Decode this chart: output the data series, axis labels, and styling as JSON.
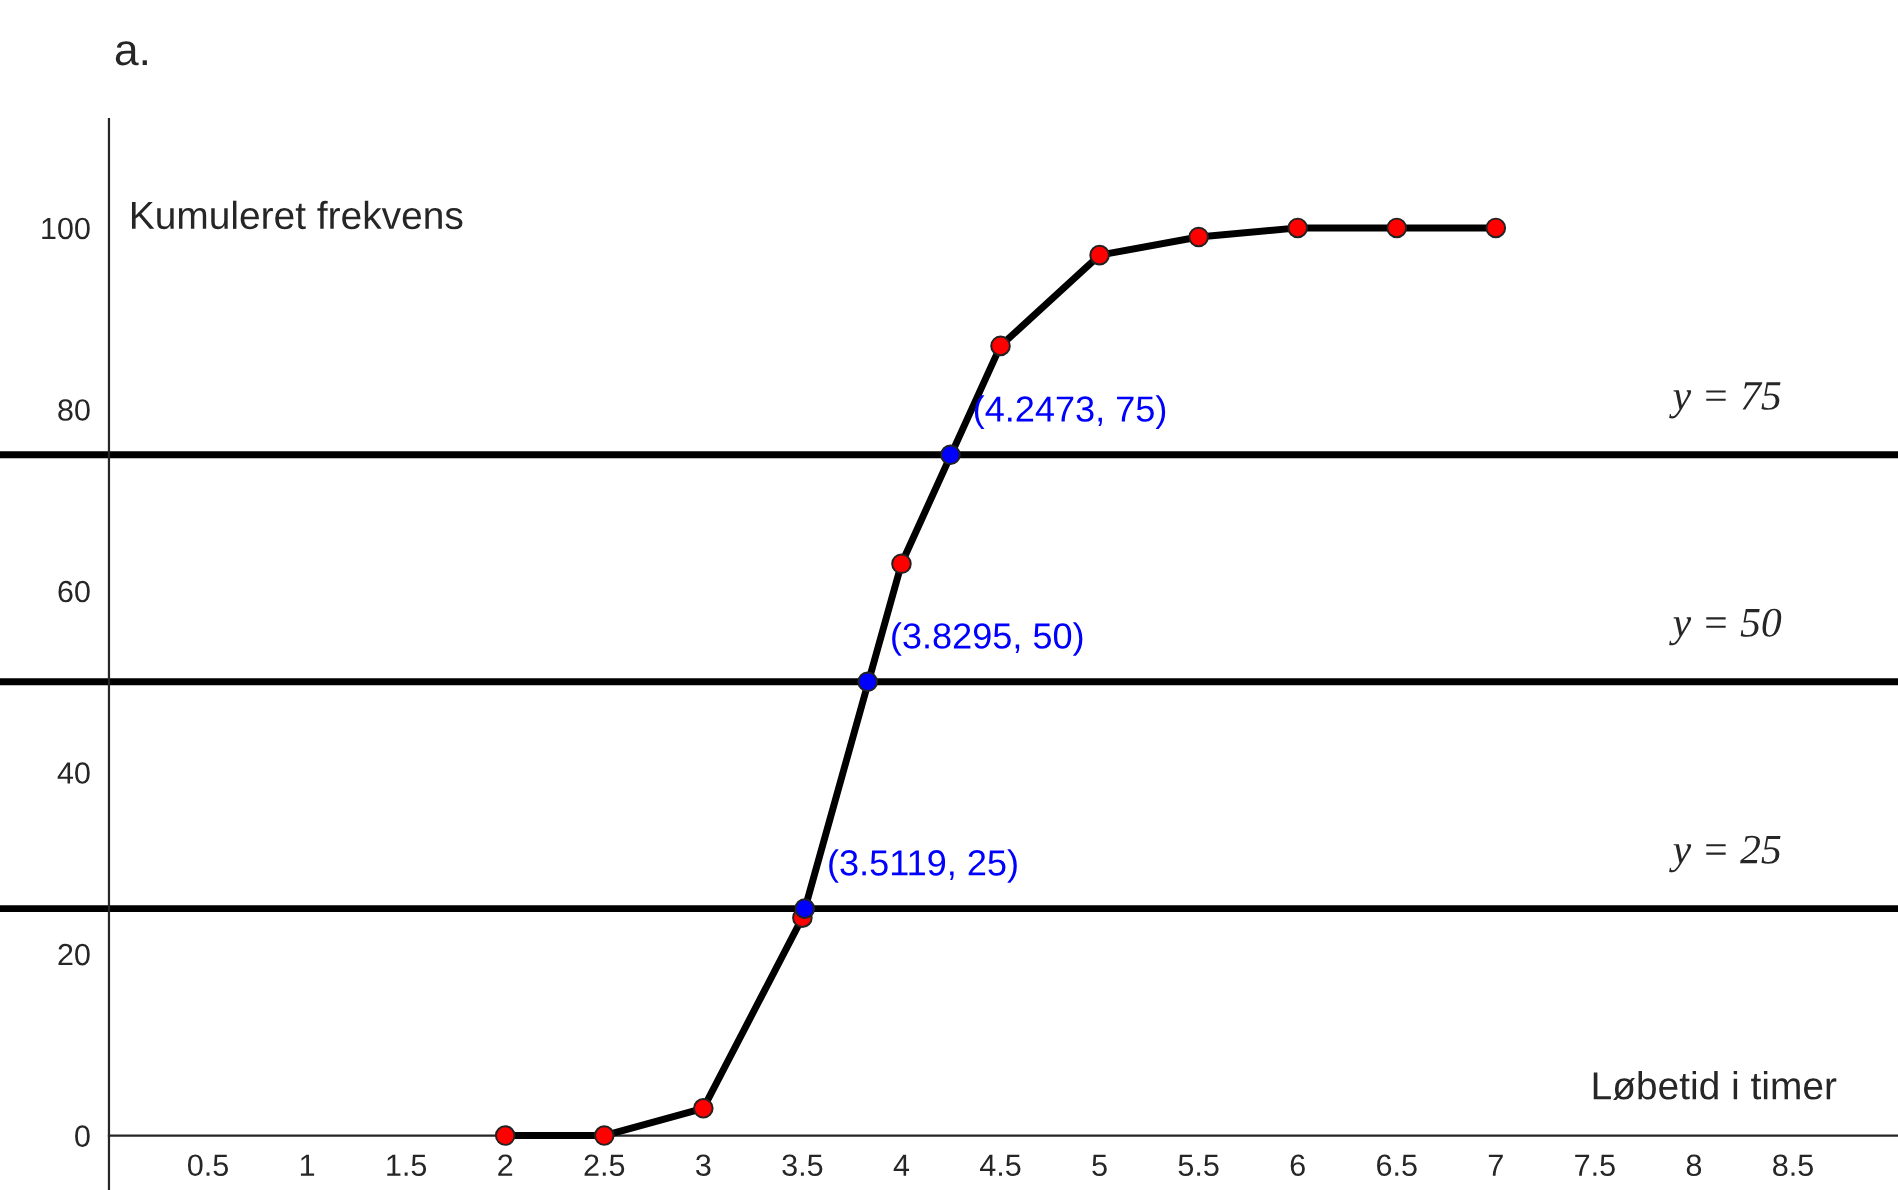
{
  "chart_data": {
    "type": "line",
    "title": "a.",
    "xlabel": "Løbetid i timer",
    "ylabel": "Kumuleret frekvens",
    "xlim": [
      -0.55,
      9.03
    ],
    "ylim": [
      -6,
      112
    ],
    "xticks": [
      0.5,
      1,
      1.5,
      2,
      2.5,
      3,
      3.5,
      4,
      4.5,
      5,
      5.5,
      6,
      6.5,
      7,
      7.5,
      8,
      8.5
    ],
    "yticks": [
      0,
      20,
      40,
      60,
      80,
      100
    ],
    "grid": false,
    "legend": false,
    "series": [
      {
        "color": "#000000",
        "marker": "none",
        "x": [
          2,
          2.5,
          3,
          3.5,
          4,
          4.5,
          5,
          5.5,
          6,
          6.5,
          7
        ],
        "values": [
          0,
          0,
          3,
          24,
          63,
          87,
          97,
          99,
          100,
          100,
          100
        ]
      },
      {
        "type": "scatter",
        "color": "#ff0000",
        "marker": "circle",
        "x": [
          2,
          2.5,
          3,
          3.5,
          4,
          4.5,
          5,
          5.5,
          6,
          6.5,
          7
        ],
        "values": [
          0,
          0,
          3,
          24,
          63,
          87,
          97,
          99,
          100,
          100,
          100
        ]
      },
      {
        "type": "scatter",
        "color": "#0000ff",
        "marker": "circle",
        "x": [
          3.5119,
          3.8295,
          4.2473
        ],
        "values": [
          25,
          50,
          75
        ]
      }
    ],
    "ref_lines": [
      {
        "axis": "y",
        "value": 25,
        "label": "y = 25",
        "color": "#000000"
      },
      {
        "axis": "y",
        "value": 50,
        "label": "y = 50",
        "color": "#000000"
      },
      {
        "axis": "y",
        "value": 75,
        "label": "y = 75",
        "color": "#000000"
      }
    ],
    "annotations": [
      {
        "text": "(3.5119, 25)",
        "x": 3.5119,
        "y": 25
      },
      {
        "text": "(3.8295, 50)",
        "x": 3.8295,
        "y": 50
      },
      {
        "text": "(4.2473, 75)",
        "x": 4.2473,
        "y": 75
      }
    ]
  }
}
